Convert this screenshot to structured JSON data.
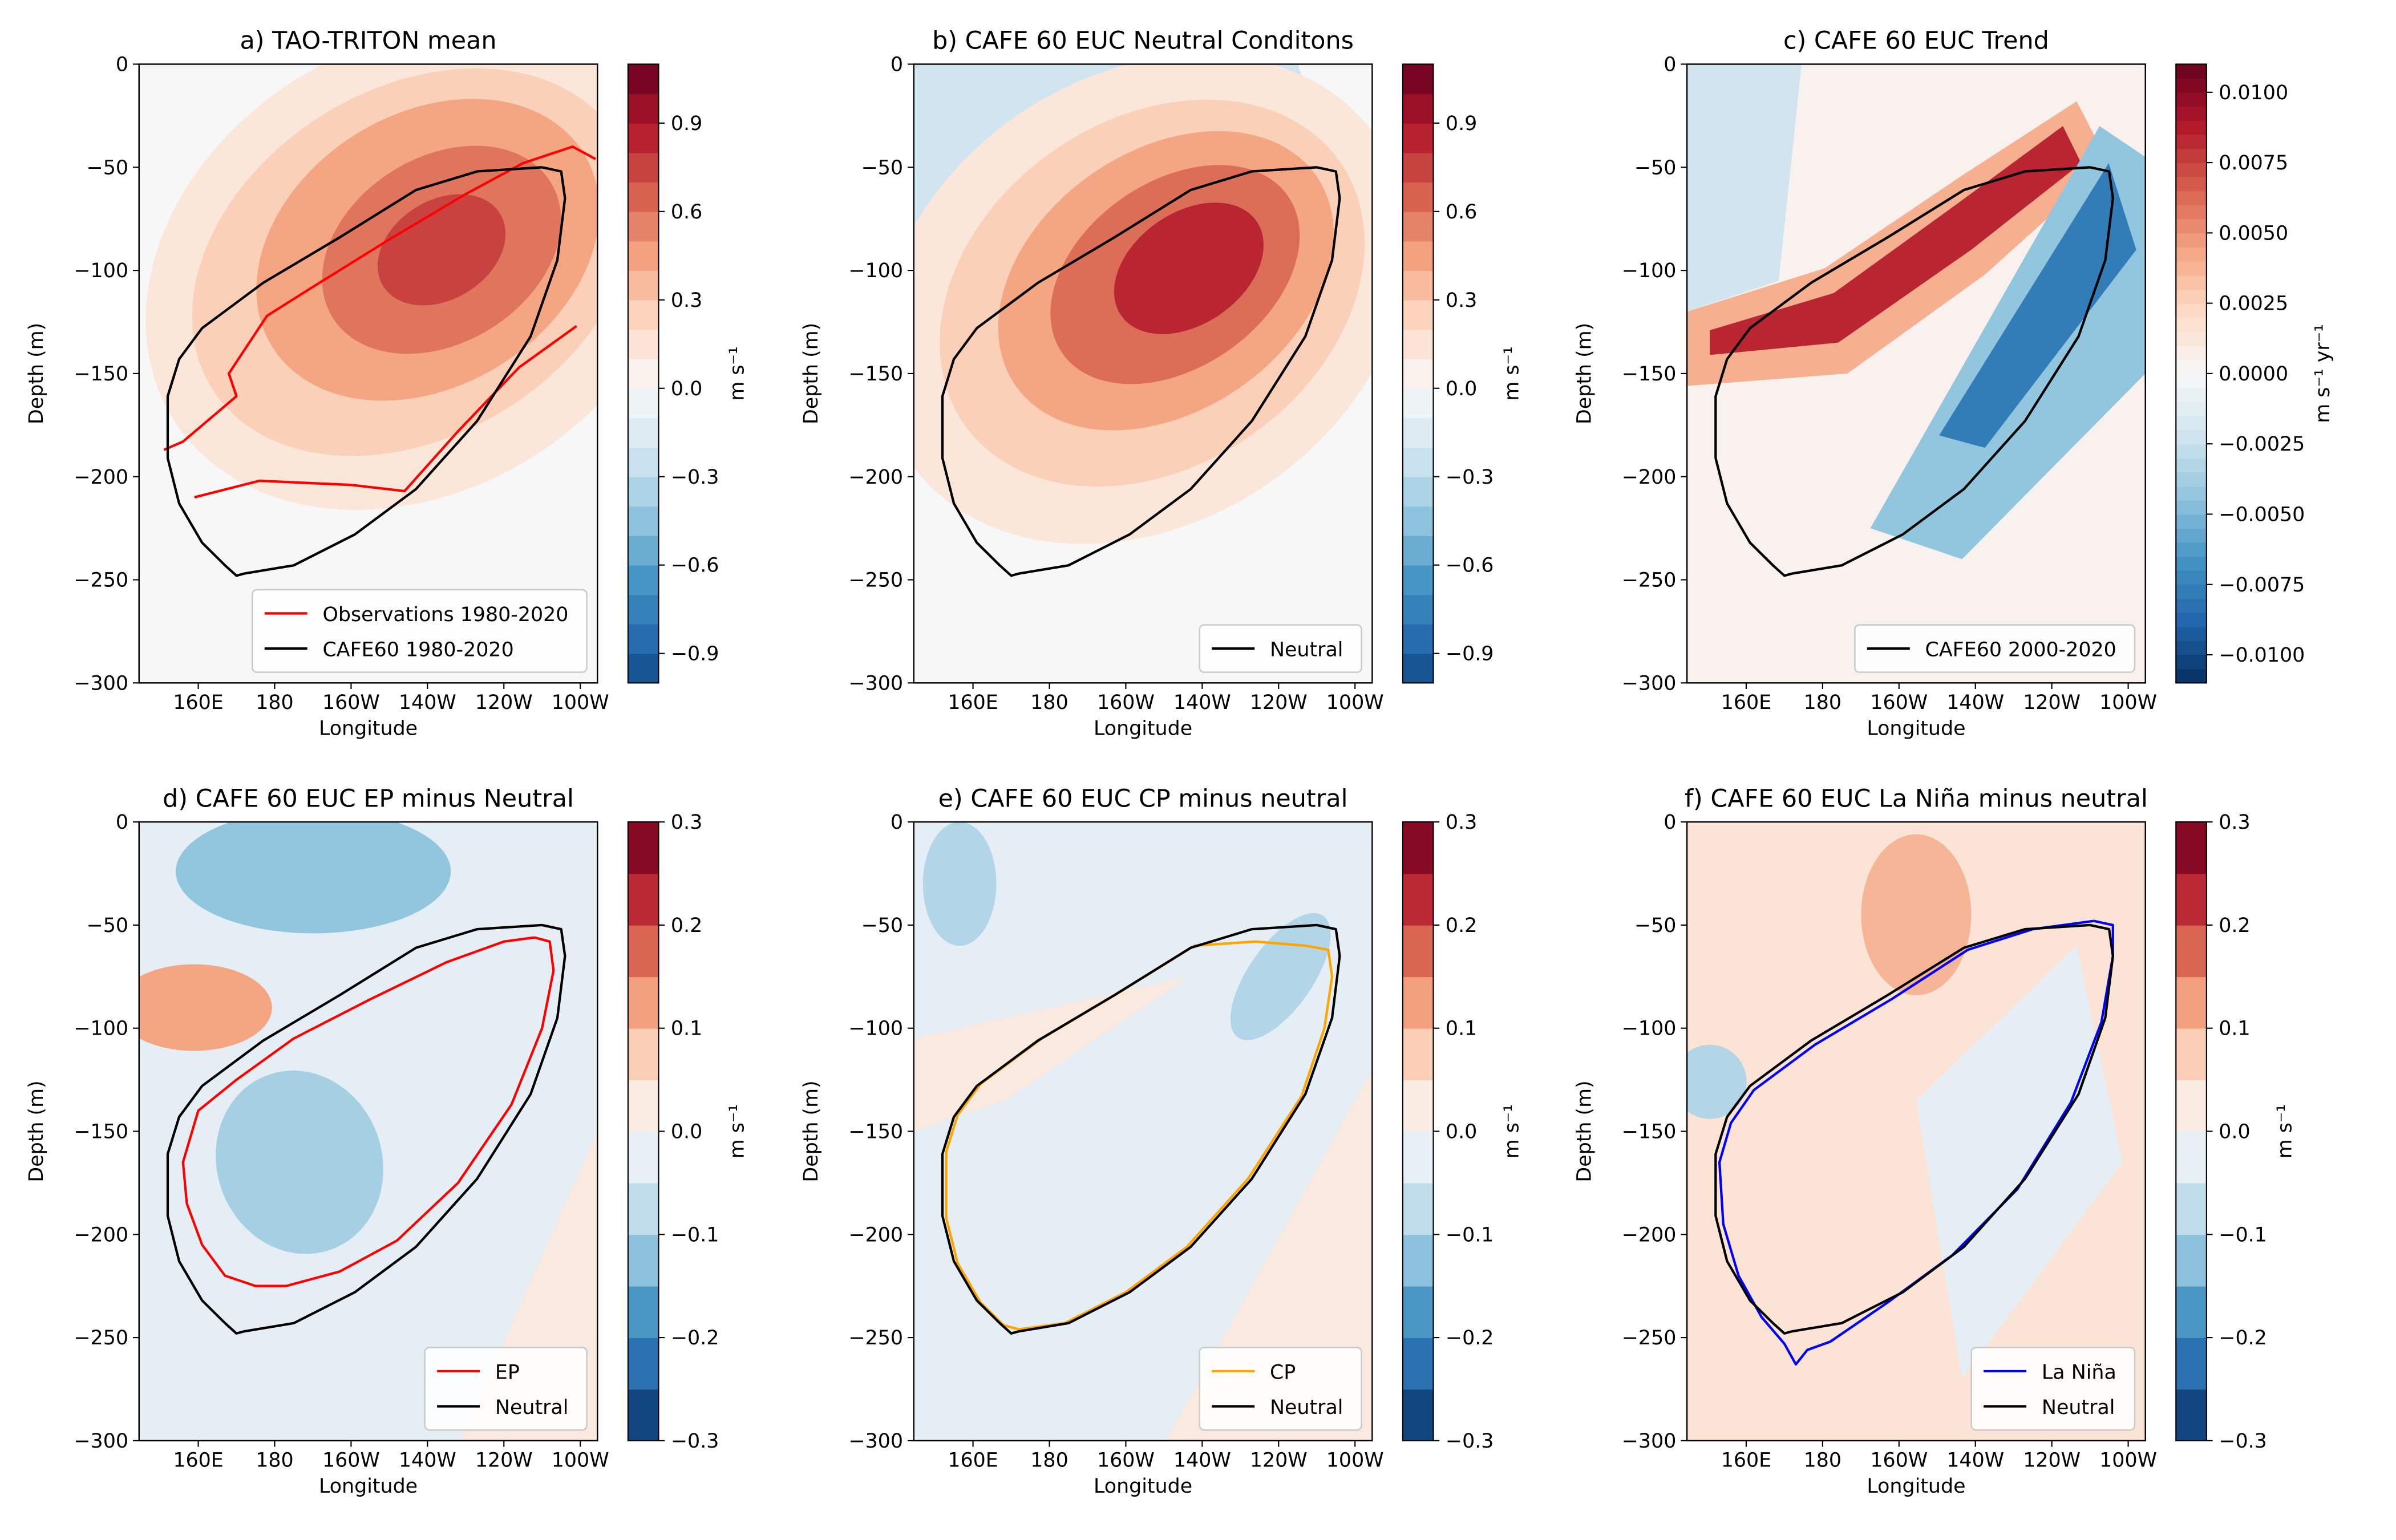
{
  "chart_data": [
    {
      "type": "contour",
      "title": "a) TAO-TRITON mean",
      "xlabel": "Longitude",
      "ylabel": "Depth (m)",
      "xlim": [
        144.5,
        264.5
      ],
      "xticks": [
        {
          "value": 160,
          "label": "160E"
        },
        180,
        {
          "value": 200,
          "label": "160W"
        },
        {
          "value": 220,
          "label": "140W"
        },
        {
          "value": 240,
          "label": "120W"
        },
        {
          "value": 260,
          "label": "100W"
        }
      ],
      "ylim": [
        -300,
        0
      ],
      "yticks": [
        {
          "value": -300,
          "label": "−300"
        },
        {
          "value": -250,
          "label": "−250"
        },
        {
          "value": -200,
          "label": "−200"
        },
        {
          "value": -150,
          "label": "−150"
        },
        {
          "value": -100,
          "label": "−100"
        },
        {
          "value": -50,
          "label": "−50"
        },
        0
      ],
      "cmap": "RdBu_r",
      "clim": [
        -1.0,
        1.1
      ],
      "ncolors": 21,
      "clabel": "m s⁻¹",
      "cticks": [
        {
          "value": -0.9,
          "label": "−0.9"
        },
        {
          "value": -0.6,
          "label": "−0.6"
        },
        {
          "value": -0.3,
          "label": "−0.3"
        },
        {
          "value": 0,
          "label": "0.0"
        },
        0.3,
        0.6,
        0.9
      ],
      "legend": "lower right",
      "series": [
        {
          "name": "Observations 1980-2020",
          "color": "#ff0000",
          "x": [
            151,
            156,
            170,
            168,
            178,
            190,
            210,
            230,
            245,
            258,
            264,
            null,
            159,
            176,
            200,
            214,
            228,
            244,
            259
          ],
          "y": [
            -187,
            -183,
            -161,
            -150,
            -122,
            -108,
            -85,
            -63,
            -48,
            -40,
            -46,
            null,
            -210,
            -202,
            -204,
            -207,
            -178,
            -147,
            -127
          ]
        },
        {
          "name": "CAFE60 1980-2020",
          "color": "#000000",
          "x": [
            250,
            255,
            256,
            254,
            247,
            233,
            217,
            201,
            185,
            172,
            170,
            167,
            161,
            155,
            152,
            152,
            155,
            161,
            177,
            197,
            217,
            233,
            250
          ],
          "y": [
            -50,
            -52,
            -65,
            -95,
            -132,
            -173,
            -206,
            -228,
            -243,
            -247,
            -248,
            -243,
            -232,
            -213,
            -191,
            -161,
            -143,
            -128,
            -106,
            -84,
            -61,
            -52,
            -50
          ]
        }
      ]
    },
    {
      "type": "contour",
      "title": "b) CAFE 60 EUC Neutral Conditons",
      "xlabel": "Longitude",
      "ylabel": "Depth (m)",
      "xlim": [
        144.5,
        264.5
      ],
      "xticks": [
        {
          "value": 160,
          "label": "160E"
        },
        180,
        {
          "value": 200,
          "label": "160W"
        },
        {
          "value": 220,
          "label": "140W"
        },
        {
          "value": 240,
          "label": "120W"
        },
        {
          "value": 260,
          "label": "100W"
        }
      ],
      "ylim": [
        -300,
        0
      ],
      "yticks": [
        {
          "value": -300,
          "label": "−300"
        },
        {
          "value": -250,
          "label": "−250"
        },
        {
          "value": -200,
          "label": "−200"
        },
        {
          "value": -150,
          "label": "−150"
        },
        {
          "value": -100,
          "label": "−100"
        },
        {
          "value": -50,
          "label": "−50"
        },
        0
      ],
      "cmap": "RdBu_r",
      "clim": [
        -1.0,
        1.1
      ],
      "ncolors": 21,
      "clabel": "m s⁻¹",
      "cticks": [
        {
          "value": -0.9,
          "label": "−0.9"
        },
        {
          "value": -0.6,
          "label": "−0.6"
        },
        {
          "value": -0.3,
          "label": "−0.3"
        },
        {
          "value": 0,
          "label": "0.0"
        },
        0.3,
        0.6,
        0.9
      ],
      "legend": "lower right",
      "series": [
        {
          "name": "Neutral",
          "color": "#000000",
          "x": [
            250,
            255,
            256,
            254,
            247,
            233,
            217,
            201,
            185,
            172,
            170,
            167,
            161,
            155,
            152,
            152,
            155,
            161,
            177,
            197,
            217,
            233,
            250
          ],
          "y": [
            -50,
            -52,
            -65,
            -95,
            -132,
            -173,
            -206,
            -228,
            -243,
            -247,
            -248,
            -243,
            -232,
            -213,
            -191,
            -161,
            -143,
            -128,
            -106,
            -84,
            -61,
            -52,
            -50
          ]
        }
      ]
    },
    {
      "type": "contour",
      "title": "c) CAFE 60 EUC Trend",
      "xlabel": "Longitude",
      "ylabel": "Depth (m)",
      "xlim": [
        144.5,
        264.5
      ],
      "xticks": [
        {
          "value": 160,
          "label": "160E"
        },
        180,
        {
          "value": 200,
          "label": "160W"
        },
        {
          "value": 220,
          "label": "140W"
        },
        {
          "value": 240,
          "label": "120W"
        },
        {
          "value": 260,
          "label": "100W"
        }
      ],
      "ylim": [
        -300,
        0
      ],
      "yticks": [
        {
          "value": -300,
          "label": "−300"
        },
        {
          "value": -250,
          "label": "−250"
        },
        {
          "value": -200,
          "label": "−200"
        },
        {
          "value": -150,
          "label": "−150"
        },
        {
          "value": -100,
          "label": "−100"
        },
        {
          "value": -50,
          "label": "−50"
        },
        0
      ],
      "cmap": "RdBu_r",
      "clim": [
        -0.011,
        0.011
      ],
      "ncolors": 44,
      "clabel": "m s⁻¹ yr⁻¹",
      "cticks": [
        {
          "value": -0.01,
          "label": "−0.0100"
        },
        {
          "value": -0.0075,
          "label": "−0.0075"
        },
        {
          "value": -0.005,
          "label": "−0.0050"
        },
        {
          "value": -0.0025,
          "label": "−0.0025"
        },
        {
          "value": 0,
          "label": "0.0000"
        },
        {
          "value": 0.0025,
          "label": "0.0025"
        },
        {
          "value": 0.005,
          "label": "0.0050"
        },
        {
          "value": 0.0075,
          "label": "0.0075"
        },
        {
          "value": 0.01,
          "label": "0.0100"
        }
      ],
      "legend": "lower right",
      "series": [
        {
          "name": "CAFE60 2000-2020",
          "color": "#000000",
          "x": [
            250,
            255,
            256,
            254,
            247,
            233,
            217,
            201,
            185,
            172,
            170,
            167,
            161,
            155,
            152,
            152,
            155,
            161,
            177,
            197,
            217,
            233,
            250
          ],
          "y": [
            -50,
            -52,
            -65,
            -95,
            -132,
            -173,
            -206,
            -228,
            -243,
            -247,
            -248,
            -243,
            -232,
            -213,
            -191,
            -161,
            -143,
            -128,
            -106,
            -84,
            -61,
            -52,
            -50
          ]
        }
      ]
    },
    {
      "type": "contour",
      "title": "d) CAFE 60 EUC EP minus Neutral",
      "xlabel": "Longitude",
      "ylabel": "Depth (m)",
      "xlim": [
        144.5,
        264.5
      ],
      "xticks": [
        {
          "value": 160,
          "label": "160E"
        },
        180,
        {
          "value": 200,
          "label": "160W"
        },
        {
          "value": 220,
          "label": "140W"
        },
        {
          "value": 240,
          "label": "120W"
        },
        {
          "value": 260,
          "label": "100W"
        }
      ],
      "ylim": [
        -300,
        0
      ],
      "yticks": [
        {
          "value": -300,
          "label": "−300"
        },
        {
          "value": -250,
          "label": "−250"
        },
        {
          "value": -200,
          "label": "−200"
        },
        {
          "value": -150,
          "label": "−150"
        },
        {
          "value": -100,
          "label": "−100"
        },
        {
          "value": -50,
          "label": "−50"
        },
        0
      ],
      "cmap": "RdBu_r",
      "clim": [
        -0.3,
        0.3
      ],
      "ncolors": 12,
      "clabel": "m s⁻¹",
      "cticks": [
        {
          "value": -0.3,
          "label": "−0.3"
        },
        {
          "value": -0.2,
          "label": "−0.2"
        },
        {
          "value": -0.1,
          "label": "−0.1"
        },
        {
          "value": 0,
          "label": "0.0"
        },
        0.1,
        0.2,
        0.3
      ],
      "legend": "lower right",
      "series": [
        {
          "name": "EP",
          "color": "#ff0000",
          "x": [
            248,
            252,
            253,
            250,
            242,
            228,
            212,
            197,
            183,
            175,
            167,
            161,
            157,
            156,
            160,
            170,
            185,
            205,
            225,
            240,
            248
          ],
          "y": [
            -56,
            -58,
            -72,
            -100,
            -137,
            -175,
            -203,
            -218,
            -225,
            -225,
            -220,
            -205,
            -185,
            -165,
            -140,
            -125,
            -105,
            -86,
            -68,
            -58,
            -56
          ]
        },
        {
          "name": "Neutral",
          "color": "#000000",
          "x": [
            250,
            255,
            256,
            254,
            247,
            233,
            217,
            201,
            185,
            172,
            170,
            167,
            161,
            155,
            152,
            152,
            155,
            161,
            177,
            197,
            217,
            233,
            250
          ],
          "y": [
            -50,
            -52,
            -65,
            -95,
            -132,
            -173,
            -206,
            -228,
            -243,
            -247,
            -248,
            -243,
            -232,
            -213,
            -191,
            -161,
            -143,
            -128,
            -106,
            -84,
            -61,
            -52,
            -50
          ]
        }
      ]
    },
    {
      "type": "contour",
      "title": "e) CAFE 60 EUC CP minus neutral",
      "xlabel": "Longitude",
      "ylabel": "Depth (m)",
      "xlim": [
        144.5,
        264.5
      ],
      "xticks": [
        {
          "value": 160,
          "label": "160E"
        },
        180,
        {
          "value": 200,
          "label": "160W"
        },
        {
          "value": 220,
          "label": "140W"
        },
        {
          "value": 240,
          "label": "120W"
        },
        {
          "value": 260,
          "label": "100W"
        }
      ],
      "ylim": [
        -300,
        0
      ],
      "yticks": [
        {
          "value": -300,
          "label": "−300"
        },
        {
          "value": -250,
          "label": "−250"
        },
        {
          "value": -200,
          "label": "−200"
        },
        {
          "value": -150,
          "label": "−150"
        },
        {
          "value": -100,
          "label": "−100"
        },
        {
          "value": -50,
          "label": "−50"
        },
        0
      ],
      "cmap": "RdBu_r",
      "clim": [
        -0.3,
        0.3
      ],
      "ncolors": 12,
      "clabel": "m s⁻¹",
      "cticks": [
        {
          "value": -0.3,
          "label": "−0.3"
        },
        {
          "value": -0.2,
          "label": "−0.2"
        },
        {
          "value": -0.1,
          "label": "−0.1"
        },
        {
          "value": 0,
          "label": "0.0"
        },
        0.1,
        0.2,
        0.3
      ],
      "legend": "lower right",
      "series": [
        {
          "name": "CP",
          "color": "#ffa500",
          "x": [
            247,
            253,
            254,
            252,
            246,
            232,
            216,
            200,
            184,
            172,
            168,
            162,
            156,
            153,
            153,
            156,
            162,
            178,
            198,
            218,
            234,
            247
          ],
          "y": [
            -60,
            -62,
            -75,
            -100,
            -133,
            -173,
            -206,
            -228,
            -243,
            -246,
            -244,
            -233,
            -214,
            -192,
            -160,
            -142,
            -127,
            -105,
            -83,
            -60,
            -58,
            -60
          ]
        },
        {
          "name": "Neutral",
          "color": "#000000",
          "x": [
            250,
            255,
            256,
            254,
            247,
            233,
            217,
            201,
            185,
            172,
            170,
            167,
            161,
            155,
            152,
            152,
            155,
            161,
            177,
            197,
            217,
            233,
            250
          ],
          "y": [
            -50,
            -52,
            -65,
            -95,
            -132,
            -173,
            -206,
            -228,
            -243,
            -247,
            -248,
            -243,
            -232,
            -213,
            -191,
            -161,
            -143,
            -128,
            -106,
            -84,
            -61,
            -52,
            -50
          ]
        }
      ]
    },
    {
      "type": "contour",
      "title": "f) CAFE 60 EUC La Niña minus neutral",
      "xlabel": "Longitude",
      "ylabel": "Depth (m)",
      "xlim": [
        144.5,
        264.5
      ],
      "xticks": [
        {
          "value": 160,
          "label": "160E"
        },
        180,
        {
          "value": 200,
          "label": "160W"
        },
        {
          "value": 220,
          "label": "140W"
        },
        {
          "value": 240,
          "label": "120W"
        },
        {
          "value": 260,
          "label": "100W"
        }
      ],
      "ylim": [
        -300,
        0
      ],
      "yticks": [
        {
          "value": -300,
          "label": "−300"
        },
        {
          "value": -250,
          "label": "−250"
        },
        {
          "value": -200,
          "label": "−200"
        },
        {
          "value": -150,
          "label": "−150"
        },
        {
          "value": -100,
          "label": "−100"
        },
        {
          "value": -50,
          "label": "−50"
        },
        0
      ],
      "cmap": "RdBu_r",
      "clim": [
        -0.3,
        0.3
      ],
      "ncolors": 12,
      "clabel": "m s⁻¹",
      "cticks": [
        {
          "value": -0.3,
          "label": "−0.3"
        },
        {
          "value": -0.2,
          "label": "−0.2"
        },
        {
          "value": -0.1,
          "label": "−0.1"
        },
        {
          "value": 0,
          "label": "0.0"
        },
        0.1,
        0.2,
        0.3
      ],
      "legend": "lower right",
      "series": [
        {
          "name": "La Niña",
          "color": "#0000ff",
          "x": [
            251,
            256,
            256,
            253,
            245,
            231,
            214,
            197,
            182,
            176,
            173,
            170,
            164,
            158,
            154,
            153,
            156,
            162,
            178,
            198,
            218,
            235,
            251
          ],
          "y": [
            -48,
            -50,
            -65,
            -97,
            -136,
            -178,
            -210,
            -233,
            -252,
            -256,
            -263,
            -253,
            -240,
            -220,
            -195,
            -165,
            -146,
            -130,
            -108,
            -86,
            -62,
            -52,
            -48
          ]
        },
        {
          "name": "Neutral",
          "color": "#000000",
          "x": [
            250,
            255,
            256,
            254,
            247,
            233,
            217,
            201,
            185,
            172,
            170,
            167,
            161,
            155,
            152,
            152,
            155,
            161,
            177,
            197,
            217,
            233,
            250
          ],
          "y": [
            -50,
            -52,
            -65,
            -95,
            -132,
            -173,
            -206,
            -228,
            -243,
            -247,
            -248,
            -243,
            -232,
            -213,
            -191,
            -161,
            -143,
            -128,
            -106,
            -84,
            -61,
            -52,
            -50
          ]
        }
      ]
    }
  ]
}
